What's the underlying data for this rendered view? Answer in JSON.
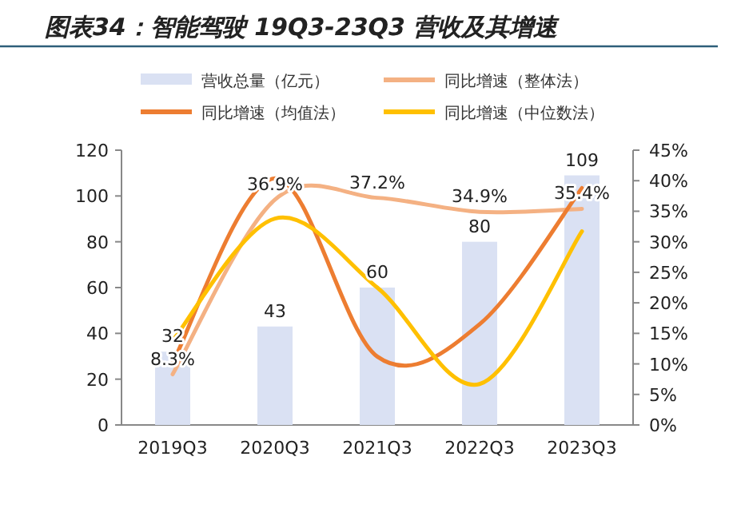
{
  "chart_data": {
    "type": "bar",
    "title": "图表34：智能驾驶 19Q3-23Q3 营收及其增速",
    "categories": [
      "2019Q3",
      "2020Q3",
      "2021Q3",
      "2022Q3",
      "2023Q3"
    ],
    "series": [
      {
        "name": "营收总量（亿元）",
        "color": "#dae1f3",
        "values": [
          32,
          43,
          60,
          80,
          109
        ],
        "value_labels": [
          "32",
          "43",
          "60",
          "80",
          "109"
        ]
      },
      {
        "name": "同比增速（整体法）",
        "type": "line",
        "axis": "y2",
        "color": "#f4b183",
        "values": [
          8.3,
          36.9,
          37.2,
          34.9,
          35.4
        ],
        "value_labels": [
          "8.3%",
          "36.9%",
          "37.2%",
          "34.9%",
          "35.4%"
        ]
      },
      {
        "name": "同比增速（均值法）",
        "type": "line",
        "axis": "y2",
        "color": "#ed7d31",
        "values": [
          10.2,
          40.4,
          11.2,
          16.5,
          38.8
        ]
      },
      {
        "name": "同比增速（中位数法）",
        "type": "line",
        "axis": "y2",
        "color": "#ffc000",
        "values": [
          13.8,
          33.8,
          22.5,
          6.7,
          31.7
        ]
      }
    ],
    "ylim": [
      0,
      120
    ],
    "yticks": [
      0,
      20,
      40,
      60,
      80,
      100,
      120
    ],
    "y2lim": [
      0,
      45
    ],
    "y2ticks": [
      {
        "value": 0,
        "label": "0%"
      },
      {
        "value": 5,
        "label": "5%"
      },
      {
        "value": 10,
        "label": "10%"
      },
      {
        "value": 15,
        "label": "15%"
      },
      {
        "value": 20,
        "label": "20%"
      },
      {
        "value": 25,
        "label": "25%"
      },
      {
        "value": 30,
        "label": "30%"
      },
      {
        "value": 35,
        "label": "35%"
      },
      {
        "value": 40,
        "label": "40%"
      },
      {
        "value": 45,
        "label": "45%"
      }
    ],
    "legend": "top",
    "grid": false
  }
}
